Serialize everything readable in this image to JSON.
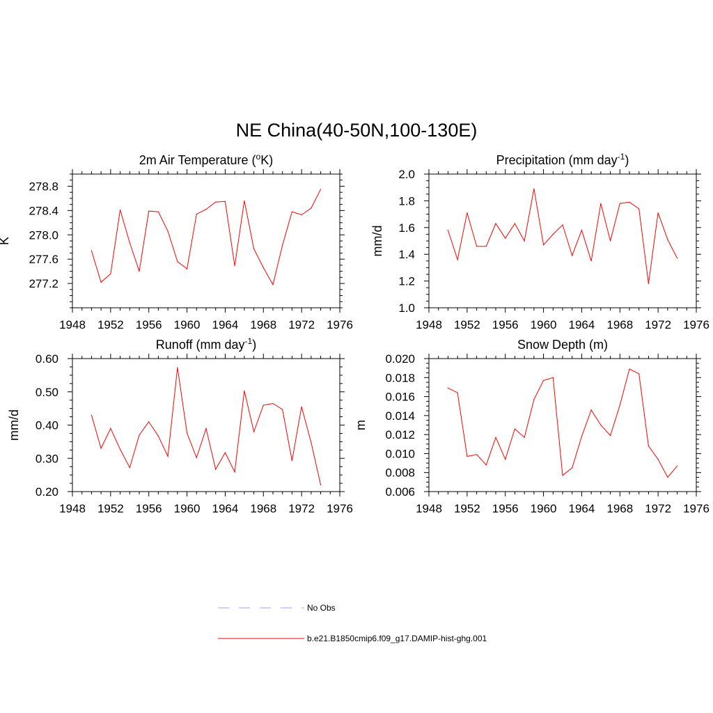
{
  "main_title": "NE China(40-50N,100-130E)",
  "colors": {
    "model_line": "#ff0000",
    "obs_line": "#a0a0ff",
    "axis": "#000000"
  },
  "legend": [
    {
      "label": "No Obs",
      "style": "dashed",
      "color": "#a0a0ff"
    },
    {
      "label": "b.e21.B1850cmip6.f09_g17.DAMIP-hist-ghg.001",
      "style": "solid",
      "color": "#ff0000"
    }
  ],
  "chart_data": [
    {
      "type": "line",
      "title": "2m Air Temperature (",
      "title_sup": "o",
      "title_rest": "K)",
      "title_end": "",
      "xlabel": "",
      "ylabel": "K",
      "xlim": [
        1948,
        1976
      ],
      "ylim": [
        276.8,
        279.0
      ],
      "xticks": [
        1948,
        1952,
        1956,
        1960,
        1964,
        1968,
        1972,
        1976
      ],
      "yticks": [
        277.2,
        277.6,
        278.0,
        278.4,
        278.8
      ],
      "ytick_labels": [
        "277.2",
        "277.6",
        "278.0",
        "278.4",
        "278.8"
      ],
      "series": [
        {
          "x": [
            1950,
            1951,
            1952,
            1953,
            1954,
            1955,
            1956,
            1957,
            1958,
            1959,
            1960,
            1961,
            1962,
            1963,
            1964,
            1965,
            1966,
            1967,
            1968,
            1969,
            1970,
            1971,
            1972,
            1973,
            1974
          ],
          "values": [
            277.74,
            277.22,
            277.36,
            278.41,
            277.87,
            277.4,
            278.39,
            278.38,
            278.06,
            277.56,
            277.44,
            278.34,
            278.42,
            278.54,
            278.55,
            277.49,
            278.56,
            277.77,
            277.46,
            277.18,
            277.83,
            278.38,
            278.33,
            278.44,
            278.75
          ]
        }
      ]
    },
    {
      "type": "line",
      "title": "Precipitation (mm day",
      "title_sup": "-1",
      "title_rest": ")",
      "title_end": "",
      "xlabel": "",
      "ylabel": "mm/d",
      "xlim": [
        1948,
        1976
      ],
      "ylim": [
        1.0,
        2.0
      ],
      "xticks": [
        1948,
        1952,
        1956,
        1960,
        1964,
        1968,
        1972,
        1976
      ],
      "yticks": [
        1.0,
        1.2,
        1.4,
        1.6,
        1.8,
        2.0
      ],
      "ytick_labels": [
        "1.0",
        "1.2",
        "1.4",
        "1.6",
        "1.8",
        "2.0"
      ],
      "series": [
        {
          "x": [
            1950,
            1951,
            1952,
            1953,
            1954,
            1955,
            1956,
            1957,
            1958,
            1959,
            1960,
            1961,
            1962,
            1963,
            1964,
            1965,
            1966,
            1967,
            1968,
            1969,
            1970,
            1971,
            1972,
            1973,
            1974
          ],
          "values": [
            1.58,
            1.36,
            1.71,
            1.46,
            1.46,
            1.63,
            1.52,
            1.63,
            1.5,
            1.89,
            1.47,
            1.55,
            1.62,
            1.39,
            1.58,
            1.35,
            1.78,
            1.5,
            1.78,
            1.79,
            1.74,
            1.18,
            1.71,
            1.51,
            1.37
          ]
        }
      ]
    },
    {
      "type": "line",
      "title": "Runoff (mm day",
      "title_sup": "-1",
      "title_rest": ")",
      "title_end": "",
      "xlabel": "",
      "ylabel": "mm/d",
      "xlim": [
        1948,
        1976
      ],
      "ylim": [
        0.2,
        0.6
      ],
      "xticks": [
        1948,
        1952,
        1956,
        1960,
        1964,
        1968,
        1972,
        1976
      ],
      "yticks": [
        0.2,
        0.3,
        0.4,
        0.5,
        0.6
      ],
      "ytick_labels": [
        "0.20",
        "0.30",
        "0.40",
        "0.50",
        "0.60"
      ],
      "series": [
        {
          "x": [
            1950,
            1951,
            1952,
            1953,
            1954,
            1955,
            1956,
            1957,
            1958,
            1959,
            1960,
            1961,
            1962,
            1963,
            1964,
            1965,
            1966,
            1967,
            1968,
            1969,
            1970,
            1971,
            1972,
            1973,
            1974
          ],
          "values": [
            0.43,
            0.33,
            0.39,
            0.327,
            0.272,
            0.37,
            0.41,
            0.367,
            0.306,
            0.573,
            0.376,
            0.302,
            0.39,
            0.267,
            0.317,
            0.259,
            0.503,
            0.38,
            0.46,
            0.465,
            0.447,
            0.293,
            0.455,
            0.347,
            0.22
          ]
        }
      ]
    },
    {
      "type": "line",
      "title": "Snow Depth (m)",
      "title_sup": "",
      "title_rest": "",
      "title_end": "",
      "xlabel": "",
      "ylabel": "m",
      "xlim": [
        1948,
        1976
      ],
      "ylim": [
        0.006,
        0.02
      ],
      "xticks": [
        1948,
        1952,
        1956,
        1960,
        1964,
        1968,
        1972,
        1976
      ],
      "yticks": [
        0.006,
        0.008,
        0.01,
        0.012,
        0.014,
        0.016,
        0.018,
        0.02
      ],
      "ytick_labels": [
        "0.006",
        "0.008",
        "0.010",
        "0.012",
        "0.014",
        "0.016",
        "0.018",
        "0.020"
      ],
      "series": [
        {
          "x": [
            1950,
            1951,
            1952,
            1953,
            1954,
            1955,
            1956,
            1957,
            1958,
            1959,
            1960,
            1961,
            1962,
            1963,
            1964,
            1965,
            1966,
            1967,
            1968,
            1969,
            1970,
            1971,
            1972,
            1973,
            1974
          ],
          "values": [
            0.0169,
            0.0164,
            0.0097,
            0.0099,
            0.0088,
            0.0117,
            0.0094,
            0.0126,
            0.0117,
            0.0157,
            0.0177,
            0.018,
            0.0077,
            0.0085,
            0.0118,
            0.0146,
            0.013,
            0.0119,
            0.0151,
            0.0189,
            0.0184,
            0.0108,
            0.0094,
            0.0075,
            0.0087
          ]
        }
      ]
    }
  ]
}
